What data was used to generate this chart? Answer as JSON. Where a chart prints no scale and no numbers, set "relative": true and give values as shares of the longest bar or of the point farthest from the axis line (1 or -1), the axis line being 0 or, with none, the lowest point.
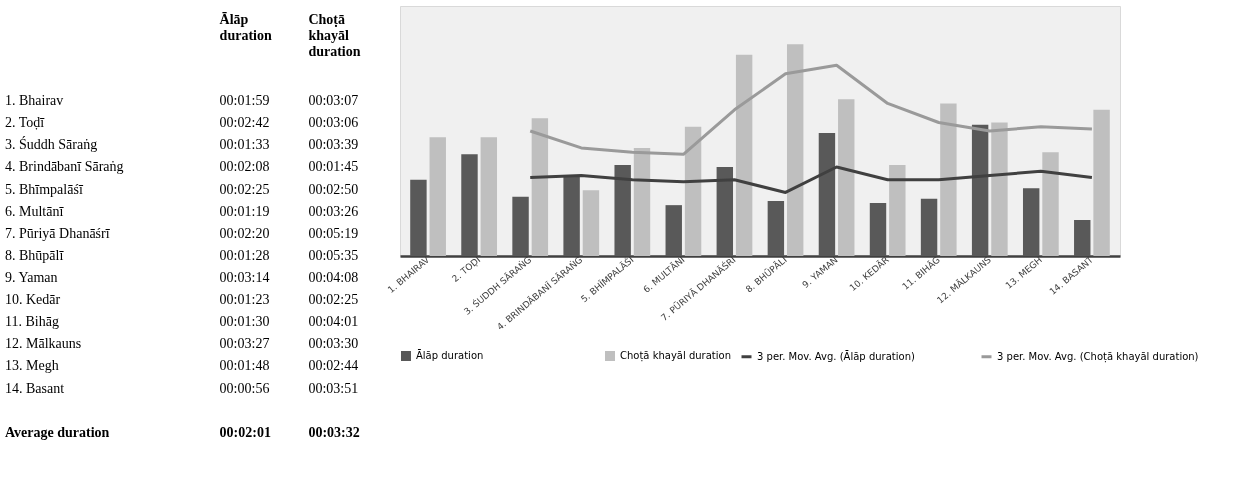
{
  "chart_data": [
    {
      "type": "other",
      "annotations": [
        "Ālāp duration",
        "Choṭā khayāl duration",
        "1. Bhairav",
        "00:01:59",
        "00:03:07",
        "2. Toḍī",
        "00:02:42",
        "00:03:06",
        "3. Śuddh Sāraṅg",
        "00:01:33",
        "00:03:39",
        "4. Brindābanī Sāraṅg",
        "00:02:08",
        "00:01:45",
        "5. Bhīmpalāśī",
        "00:02:25",
        "00:02:50",
        "6. Multānī",
        "00:01:19",
        "00:03:26",
        "7. Pūriyā Dhanāśrī",
        "00:02:20",
        "00:05:19",
        "8. Bhūpālī",
        "00:01:28",
        "00:05:35",
        "9. Yaman",
        "00:03:14",
        "00:04:08",
        "10. Kedār",
        "00:01:23",
        "00:02:25",
        "11. Bihāg",
        "00:01:30",
        "00:04:01",
        "12. Mālkauns",
        "00:03:27",
        "00:03:30",
        "13. Megh",
        "00:01:48",
        "00:02:44",
        "14. Basant",
        "00:00:56",
        "00:03:51",
        "Average duration",
        "00:02:01",
        "00:03:32"
      ]
    },
    {
      "type": "bar",
      "relative": true,
      "categories": [
        "1. BHAIRAV",
        "2. TOḌĪ",
        "3. ŚUDDH SĀRAṄG",
        "4. BRINDĀBANĪ SĀRAṄG",
        "5. BHĪMPALĀŚĪ",
        "6. MULTĀNĪ",
        "7. PŪRIYĀ DHANĀŚRĪ",
        "8. BHŪPĀLĪ",
        "9. YAMAN",
        "10. KEDĀR",
        "11. BIHĀG",
        "12. MĀLKAUNS",
        "13. MEGH",
        "14. BASANT"
      ],
      "series": [
        {
          "name": "Ālāp duration",
          "type": "bar",
          "color": "#595959",
          "values": [
            0.36,
            0.48,
            0.28,
            0.38,
            0.43,
            0.24,
            0.42,
            0.26,
            0.58,
            0.25,
            0.27,
            0.62,
            0.32,
            0.17
          ]
        },
        {
          "name": "Choṭā khayāl duration",
          "type": "bar",
          "color": "#bfbfbf",
          "values": [
            0.56,
            0.56,
            0.65,
            0.31,
            0.51,
            0.61,
            0.95,
            1,
            0.74,
            0.43,
            0.72,
            0.63,
            0.49,
            0.69
          ]
        },
        {
          "name": "3 per. Mov. Avg. (Ālāp duration)",
          "type": "line",
          "color": "#404040",
          "values": [
            null,
            null,
            0.37,
            0.38,
            0.36,
            0.35,
            0.36,
            0.3,
            0.42,
            0.36,
            0.36,
            0.38,
            0.4,
            0.37
          ]
        },
        {
          "name": "3 per. Mov. Avg. (Choṭā khayāl duration)",
          "type": "line",
          "color": "#9a9a9a",
          "values": [
            null,
            null,
            0.59,
            0.51,
            0.49,
            0.48,
            0.69,
            0.86,
            0.9,
            0.72,
            0.63,
            0.59,
            0.61,
            0.6
          ]
        }
      ],
      "tick_labels": "x",
      "legend": "bottom"
    }
  ]
}
